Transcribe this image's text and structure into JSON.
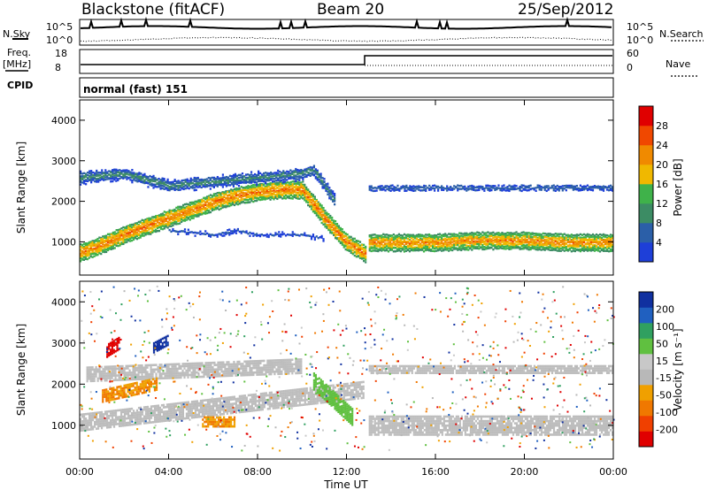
{
  "header": {
    "site": "Blackstone (fitACF)",
    "beam": "Beam 20",
    "date": "25/Sep/2012"
  },
  "status_panels": {
    "nsky_label": "N.Sky",
    "nsearch_label": "N.Search",
    "noise_ticks_left": [
      "10^5",
      "10^0"
    ],
    "noise_ticks_right": [
      "10^5",
      "10^0"
    ],
    "freq_label_1": "Freq.",
    "freq_label_2": "[MHz]",
    "freq_ticks": [
      "18",
      "8"
    ],
    "nave_label": "Nave",
    "nave_ticks": [
      "60",
      "0"
    ],
    "cpid_label": "CPID",
    "cpid_value": "normal (fast) 151"
  },
  "colors": {
    "power": [
      "#1e3fd8",
      "#2b5fa8",
      "#3c8c64",
      "#3fb24a",
      "#f0b800",
      "#f08a00",
      "#f04800",
      "#e00000"
    ],
    "velocity": [
      "#e00000",
      "#f04000",
      "#f07800",
      "#f0a000",
      "#b8b8b8",
      "#c8c8c8",
      "#60c040",
      "#30a060",
      "#2060c0",
      "#1030a0"
    ],
    "gray_scatter": "#bdbdbd"
  },
  "chart_data": [
    {
      "type": "heatmap",
      "name": "power",
      "ylabel": "Slant Range [km]",
      "y_ticks": [
        "1000",
        "2000",
        "3000",
        "4000"
      ],
      "y_tick_values": [
        1000,
        2000,
        3000,
        4000
      ],
      "ylim": [
        180,
        4500
      ],
      "x_ticks": [
        "00:00",
        "04:00",
        "08:00",
        "12:00",
        "16:00",
        "20:00",
        "00:00"
      ],
      "x_tick_values": [
        0,
        4,
        8,
        12,
        16,
        20,
        24
      ],
      "xlim": [
        0,
        24
      ],
      "colorbar": {
        "label": "Power [dB]",
        "ticks": [
          "4",
          "8",
          "12",
          "16",
          "20",
          "24",
          "28"
        ],
        "tick_values": [
          4,
          8,
          12,
          16,
          20,
          24,
          28
        ],
        "range": [
          0,
          32
        ]
      },
      "layers": [
        {
          "x": [
            0,
            1,
            2,
            3,
            4,
            5,
            6,
            7,
            8,
            9,
            10,
            11,
            12,
            12.9
          ],
          "y": [
            750,
            950,
            1200,
            1400,
            1600,
            1800,
            2000,
            2150,
            2250,
            2300,
            2300,
            1600,
            1000,
            700
          ],
          "level": 26
        },
        {
          "x": [
            13,
            14,
            16,
            18,
            20,
            22,
            24
          ],
          "y": [
            1000,
            1000,
            1000,
            1050,
            1050,
            1000,
            1000
          ],
          "level": 25
        },
        {
          "x": [
            0,
            2,
            4,
            6,
            8,
            10,
            10.5,
            11.5
          ],
          "y": [
            2600,
            2700,
            2400,
            2500,
            2600,
            2700,
            2800,
            2000
          ],
          "level": 12
        },
        {
          "x": [
            13,
            16,
            20,
            24
          ],
          "y": [
            2350,
            2350,
            2350,
            2350
          ],
          "level": 8
        },
        {
          "x": [
            4,
            5,
            6,
            7,
            8,
            9,
            10,
            11
          ],
          "y": [
            1300,
            1250,
            1200,
            1300,
            1200,
            1200,
            1200,
            1100
          ],
          "level": 6
        }
      ]
    },
    {
      "type": "heatmap",
      "name": "velocity",
      "ylabel": "Slant Range [km]",
      "y_ticks": [
        "1000",
        "2000",
        "3000",
        "4000"
      ],
      "y_tick_values": [
        1000,
        2000,
        3000,
        4000
      ],
      "ylim": [
        180,
        4500
      ],
      "x_ticks": [
        "00:00",
        "04:00",
        "08:00",
        "12:00",
        "16:00",
        "20:00",
        "00:00"
      ],
      "x_tick_values": [
        0,
        4,
        8,
        12,
        16,
        20,
        24
      ],
      "xlim": [
        0,
        24
      ],
      "xlabel": "Time UT",
      "colorbar": {
        "label": "Velocity [m s⁻¹]",
        "ticks": [
          "200",
          "100",
          "50",
          "15",
          "-15",
          "-50",
          "-100",
          "-200"
        ],
        "tick_values": [
          200,
          100,
          50,
          15,
          -15,
          -50,
          -100,
          -200
        ],
        "range": [
          -250,
          250
        ]
      }
    }
  ]
}
